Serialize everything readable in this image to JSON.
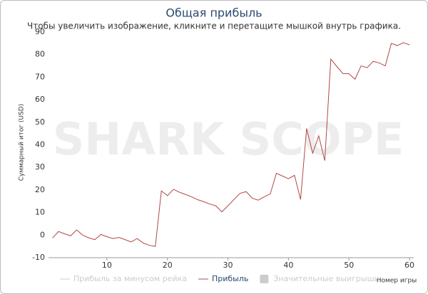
{
  "chart_data": {
    "type": "line",
    "title": "Общая прибыль",
    "subtitle": "Чтобы увеличить изображение, кликните и перетащите мышкой внутрь графика.",
    "watermark": "SHARK SCOPE",
    "x_label": "Номер игры",
    "y_label": "Суммарный итог (USD)",
    "x": [
      1,
      2,
      3,
      4,
      5,
      6,
      7,
      8,
      9,
      10,
      11,
      12,
      13,
      14,
      15,
      16,
      17,
      18,
      19,
      20,
      21,
      22,
      23,
      24,
      25,
      26,
      27,
      28,
      29,
      30,
      31,
      32,
      33,
      34,
      35,
      36,
      37,
      38,
      39,
      40,
      41,
      42,
      43,
      44,
      45,
      46,
      47,
      48,
      49,
      50,
      51,
      52,
      53,
      54,
      55,
      56,
      57,
      58,
      59,
      60
    ],
    "series": [
      {
        "name": "Прибыль",
        "color": "#b04848",
        "values": [
          -1.3,
          1.6,
          0.6,
          -0.3,
          2.3,
          0,
          -1.2,
          -2,
          0.3,
          -0.7,
          -1.5,
          -1,
          -2,
          -3,
          -1.5,
          -3.5,
          -4.5,
          -5,
          19.6,
          17.5,
          20.3,
          19,
          18,
          17,
          15.7,
          14.8,
          13.8,
          13,
          10.3,
          13,
          15.8,
          18.5,
          19.3,
          16.4,
          15.5,
          17,
          18.3,
          27.4,
          26.2,
          25,
          26.5,
          15.8,
          47.3,
          36.3,
          44,
          33,
          78,
          74.7,
          71.6,
          71.5,
          69.1,
          75,
          74.2,
          77,
          76.3,
          75,
          85,
          84,
          85.3,
          84.3
        ]
      }
    ],
    "hidden_legend_items": [
      {
        "name": "Прибыль за минусом рейка",
        "color": "#cccccc",
        "symbol": "line"
      },
      {
        "name": "Значительные выигрыши",
        "color": "#cccccc",
        "symbol": "box"
      }
    ],
    "xlim": [
      0.35,
      60.7
    ],
    "xticks": [
      10,
      20,
      30,
      40,
      50,
      60
    ],
    "ylim": [
      -10,
      90
    ],
    "yticks": [
      -10,
      0,
      10,
      20,
      30,
      40,
      50,
      60,
      70,
      80,
      90
    ],
    "grid": false
  }
}
